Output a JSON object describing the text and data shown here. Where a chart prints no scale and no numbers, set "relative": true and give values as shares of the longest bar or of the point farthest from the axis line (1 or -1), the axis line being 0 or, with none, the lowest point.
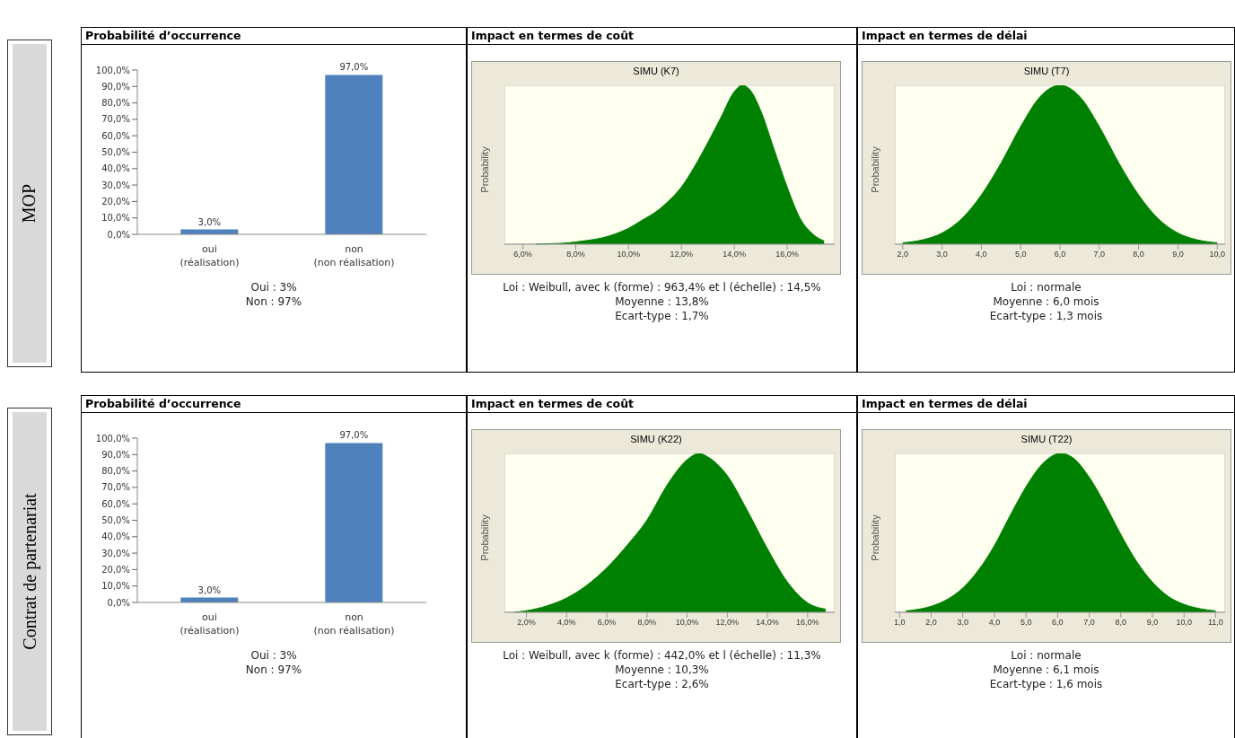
{
  "chart_data": [
    {
      "type": "bar",
      "title": "Probabilité d’occurrence",
      "categories": [
        "oui (réalisation)",
        "non (non réalisation)"
      ],
      "values": [
        3,
        97
      ],
      "color": "#4f81bd",
      "value_labels": [
        "3,0%",
        "97,0%"
      ],
      "ylim": [
        0,
        100
      ],
      "yticks": [
        {
          "value": 0,
          "label": "0,0%"
        },
        {
          "value": 10,
          "label": "10,0%"
        },
        {
          "value": 20,
          "label": "20,0%"
        },
        {
          "value": 30,
          "label": "30,0%"
        },
        {
          "value": 40,
          "label": "40,0%"
        },
        {
          "value": 50,
          "label": "50,0%"
        },
        {
          "value": 60,
          "label": "60,0%"
        },
        {
          "value": 70,
          "label": "70,0%"
        },
        {
          "value": 80,
          "label": "80,0%"
        },
        {
          "value": 90,
          "label": "90,0%"
        },
        {
          "value": 100,
          "label": "100,0%"
        }
      ],
      "annotations": [
        "MOP",
        "Oui : 3%",
        "Non : 97%"
      ]
    },
    {
      "type": "area",
      "title": "Impact en termes de coût",
      "subtitle": "SIMU (K7)",
      "ylabel": "Probability",
      "relative": true,
      "color": "#008000",
      "x": [
        6.5,
        7,
        7.5,
        8,
        8.5,
        9,
        9.5,
        10,
        10.5,
        11,
        11.5,
        12,
        12.5,
        13,
        13.5,
        14,
        14.3,
        14.6,
        15,
        15.5,
        16,
        16.5,
        17,
        17.4
      ],
      "values": [
        0,
        0.003,
        0.006,
        0.014,
        0.025,
        0.04,
        0.065,
        0.1,
        0.15,
        0.2,
        0.27,
        0.36,
        0.49,
        0.64,
        0.8,
        0.96,
        1,
        0.97,
        0.84,
        0.6,
        0.36,
        0.16,
        0.06,
        0.02
      ],
      "xlim": [
        5.3,
        17.8
      ],
      "xticks": [
        {
          "value": 6,
          "label": "6,0%"
        },
        {
          "value": 8,
          "label": "8,0%"
        },
        {
          "value": 10,
          "label": "10,0%"
        },
        {
          "value": 12,
          "label": "12,0%"
        },
        {
          "value": 14,
          "label": "14,0%"
        },
        {
          "value": 16,
          "label": "16,0%"
        }
      ],
      "annotations": [
        "Loi : Weibull, avec k (forme) : 963,4% et l (échelle) : 14,5%",
        "Moyenne : 13,8%",
        "Ecart-type : 1,7%"
      ]
    },
    {
      "type": "area",
      "title": "Impact en termes de délai",
      "subtitle": "SIMU (T7)",
      "ylabel": "Probability",
      "relative": true,
      "color": "#008000",
      "x": [
        2,
        2.5,
        3,
        3.5,
        4,
        4.5,
        5,
        5.5,
        6,
        6.5,
        7,
        7.5,
        8,
        8.5,
        9,
        9.5,
        10
      ],
      "values": [
        0.009,
        0.027,
        0.07,
        0.16,
        0.31,
        0.51,
        0.74,
        0.93,
        1,
        0.93,
        0.74,
        0.51,
        0.31,
        0.16,
        0.07,
        0.027,
        0.009
      ],
      "xlim": [
        1.8,
        10.2
      ],
      "xticks": [
        {
          "value": 2,
          "label": "2,0"
        },
        {
          "value": 3,
          "label": "3,0"
        },
        {
          "value": 4,
          "label": "4,0"
        },
        {
          "value": 5,
          "label": "5,0"
        },
        {
          "value": 6,
          "label": "6,0"
        },
        {
          "value": 7,
          "label": "7,0"
        },
        {
          "value": 8,
          "label": "8,0"
        },
        {
          "value": 9,
          "label": "9,0"
        },
        {
          "value": 10,
          "label": "10,0"
        }
      ],
      "annotations": [
        "Loi : normale",
        "Moyenne : 6,0 mois",
        "Ecart-type : 1,3 mois"
      ]
    },
    {
      "type": "bar",
      "title": "Probabilité d’occurrence",
      "categories": [
        "oui (réalisation)",
        "non (non réalisation)"
      ],
      "values": [
        3,
        97
      ],
      "color": "#4f81bd",
      "value_labels": [
        "3,0%",
        "97,0%"
      ],
      "ylim": [
        0,
        100
      ],
      "yticks": [
        {
          "value": 0,
          "label": "0,0%"
        },
        {
          "value": 10,
          "label": "10,0%"
        },
        {
          "value": 20,
          "label": "20,0%"
        },
        {
          "value": 30,
          "label": "30,0%"
        },
        {
          "value": 40,
          "label": "40,0%"
        },
        {
          "value": 50,
          "label": "50,0%"
        },
        {
          "value": 60,
          "label": "60,0%"
        },
        {
          "value": 70,
          "label": "70,0%"
        },
        {
          "value": 80,
          "label": "80,0%"
        },
        {
          "value": 90,
          "label": "90,0%"
        },
        {
          "value": 100,
          "label": "100,0%"
        }
      ],
      "annotations": [
        "Contrat de partenariat",
        "Oui : 3%",
        "Non : 97%"
      ]
    },
    {
      "type": "area",
      "title": "Impact en termes de coût",
      "subtitle": "SIMU (K22)",
      "ylabel": "Probability",
      "relative": true,
      "color": "#008000",
      "x": [
        1.4,
        2,
        3,
        4,
        5,
        6,
        7,
        8,
        9,
        10,
        10.6,
        11,
        12,
        13,
        14,
        15,
        16,
        16.9
      ],
      "values": [
        0,
        0.01,
        0.04,
        0.09,
        0.17,
        0.28,
        0.42,
        0.58,
        0.8,
        0.96,
        1,
        0.98,
        0.86,
        0.64,
        0.4,
        0.19,
        0.06,
        0.02
      ],
      "xlim": [
        0.9,
        17.35
      ],
      "xticks": [
        {
          "value": 2,
          "label": "2,0%"
        },
        {
          "value": 4,
          "label": "4,0%"
        },
        {
          "value": 6,
          "label": "6,0%"
        },
        {
          "value": 8,
          "label": "8,0%"
        },
        {
          "value": 10,
          "label": "10,0%"
        },
        {
          "value": 12,
          "label": "12,0%"
        },
        {
          "value": 14,
          "label": "14,0%"
        },
        {
          "value": 16,
          "label": "16,0%"
        }
      ],
      "annotations": [
        "Loi : Weibull, avec k (forme) : 442,0% et l (échelle) : 11,3%",
        "Moyenne : 10,3%",
        "Ecart-type : 2,6%"
      ]
    },
    {
      "type": "area",
      "title": "Impact en termes de délai",
      "subtitle": "SIMU (T22)",
      "ylabel": "Probability",
      "relative": true,
      "color": "#008000",
      "x": [
        1.2,
        1.5,
        2,
        2.5,
        3,
        3.5,
        4,
        4.5,
        5,
        5.5,
        6.1,
        6.5,
        7,
        7.5,
        8,
        8.5,
        9,
        9.5,
        10,
        10.5,
        11
      ],
      "values": [
        0.009,
        0.016,
        0.038,
        0.08,
        0.153,
        0.267,
        0.42,
        0.61,
        0.79,
        0.93,
        1,
        0.97,
        0.85,
        0.68,
        0.49,
        0.32,
        0.19,
        0.1,
        0.05,
        0.023,
        0.009
      ],
      "xlim": [
        0.85,
        11.3
      ],
      "xticks": [
        {
          "value": 1,
          "label": "1,0"
        },
        {
          "value": 2,
          "label": "2,0"
        },
        {
          "value": 3,
          "label": "3,0"
        },
        {
          "value": 4,
          "label": "4,0"
        },
        {
          "value": 5,
          "label": "5,0"
        },
        {
          "value": 6,
          "label": "6,0"
        },
        {
          "value": 7,
          "label": "7,0"
        },
        {
          "value": 8,
          "label": "8,0"
        },
        {
          "value": 9,
          "label": "9,0"
        },
        {
          "value": 10,
          "label": "10,0"
        },
        {
          "value": 11,
          "label": "11,0"
        }
      ],
      "annotations": [
        "Loi : normale",
        "Moyenne : 6,1 mois",
        "Ecart-type : 1,6 mois"
      ]
    }
  ]
}
